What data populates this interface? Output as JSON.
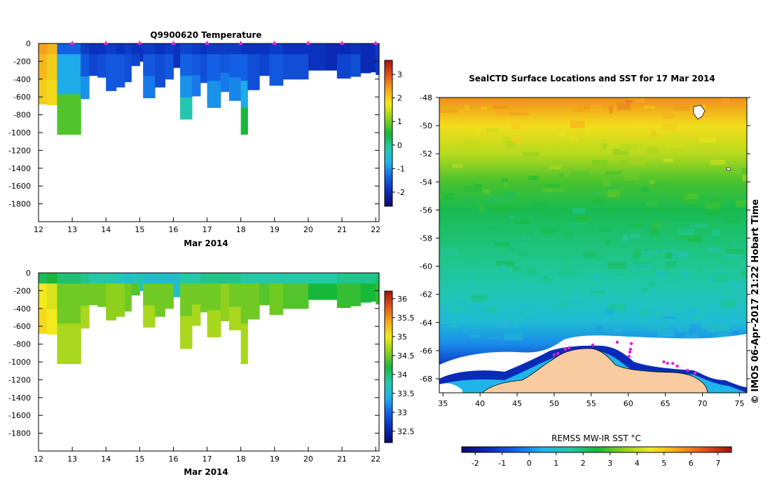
{
  "colors": {
    "ramp": [
      "#0b0b6e",
      "#0a2bb8",
      "#1464e8",
      "#1fb4ea",
      "#22c9a8",
      "#17b83a",
      "#8fd01d",
      "#f2ea1c",
      "#f5a51a",
      "#e0531a",
      "#a3140f"
    ],
    "land": "#f8cba0",
    "ice": "#ffffff",
    "marker": "#e020e0"
  },
  "chart_data": [
    {
      "type": "heatmap",
      "name": "temperature-section",
      "title": "Q9900620  Temperature",
      "xlabel": "Mar 2014",
      "x_ticks": [
        "12",
        "13",
        "14",
        "15",
        "16",
        "17",
        "18",
        "19",
        "20",
        "21",
        "22"
      ],
      "xlim": [
        12,
        22.1
      ],
      "ylabel": "",
      "y_ticks": [
        "0",
        "-200",
        "-400",
        "-600",
        "-800",
        "-1000",
        "-1200",
        "-1400",
        "-1600",
        "-1800"
      ],
      "ylim": [
        -2000,
        0
      ],
      "colorbar": {
        "ticks": [
          "3",
          "2",
          "1",
          "0",
          "-1",
          "-2"
        ],
        "range": [
          -2.6,
          3.6
        ]
      },
      "surface_markers": [
        13,
        14,
        15,
        16,
        17,
        18,
        19,
        20,
        21,
        22
      ],
      "profiles": [
        {
          "t": 12.0,
          "d": 680,
          "c": [
            2.4,
            2.2,
            2.0
          ]
        },
        {
          "t": 12.25,
          "d": 690,
          "c": [
            2.2,
            2.0,
            1.9
          ]
        },
        {
          "t": 12.55,
          "d": 1020,
          "c": [
            -1.4,
            -0.8,
            0.8
          ]
        },
        {
          "t": 13.25,
          "d": 620,
          "c": [
            -1.8,
            -1.5,
            -1.0
          ]
        },
        {
          "t": 13.5,
          "d": 360,
          "c": [
            -1.9,
            -1.7
          ]
        },
        {
          "t": 13.75,
          "d": 380,
          "c": [
            -1.9,
            -1.6
          ]
        },
        {
          "t": 14.0,
          "d": 530,
          "c": [
            -1.8,
            -1.5
          ]
        },
        {
          "t": 14.3,
          "d": 490,
          "c": [
            -1.9,
            -1.5
          ]
        },
        {
          "t": 14.55,
          "d": 430,
          "c": [
            -1.8,
            -1.6
          ]
        },
        {
          "t": 14.75,
          "d": 250,
          "c": [
            -1.9,
            -1.7
          ]
        },
        {
          "t": 15.0,
          "d": 200,
          "c": [
            -1.9
          ]
        },
        {
          "t": 15.1,
          "d": 610,
          "c": [
            -1.8,
            -1.5,
            -1.2
          ]
        },
        {
          "t": 15.45,
          "d": 490,
          "c": [
            -1.9,
            -1.6
          ]
        },
        {
          "t": 15.75,
          "d": 400,
          "c": [
            -1.8,
            -1.5
          ]
        },
        {
          "t": 16.0,
          "d": 270,
          "c": [
            -1.9
          ]
        },
        {
          "t": 16.2,
          "d": 850,
          "c": [
            -1.7,
            -1.4,
            -1.0,
            -0.2
          ]
        },
        {
          "t": 16.55,
          "d": 590,
          "c": [
            -1.8,
            -1.5,
            -1.2
          ]
        },
        {
          "t": 16.8,
          "d": 440,
          "c": [
            -1.9,
            -1.6
          ]
        },
        {
          "t": 17.0,
          "d": 720,
          "c": [
            -1.8,
            -1.4,
            -1.0
          ]
        },
        {
          "t": 17.4,
          "d": 540,
          "c": [
            -1.8,
            -1.5,
            -1.2
          ]
        },
        {
          "t": 17.65,
          "d": 640,
          "c": [
            -1.8,
            -1.4,
            -1.1
          ]
        },
        {
          "t": 18.0,
          "d": 1020,
          "c": [
            -1.9,
            -1.4,
            -0.8,
            0.5
          ]
        },
        {
          "t": 18.2,
          "d": 520,
          "c": [
            -1.9,
            -1.6
          ]
        },
        {
          "t": 18.55,
          "d": 360,
          "c": [
            -1.9,
            -1.7
          ]
        },
        {
          "t": 18.85,
          "d": 470,
          "c": [
            -1.8,
            -1.5
          ]
        },
        {
          "t": 19.25,
          "d": 400,
          "c": [
            -1.9,
            -1.6
          ]
        },
        {
          "t": 19.7,
          "d": 400,
          "c": [
            -1.9,
            -1.6
          ]
        },
        {
          "t": 20.0,
          "d": 300,
          "c": [
            -1.9
          ]
        },
        {
          "t": 20.5,
          "d": 300,
          "c": [
            -2.0
          ]
        },
        {
          "t": 20.85,
          "d": 390,
          "c": [
            -2.0,
            -1.7
          ]
        },
        {
          "t": 21.25,
          "d": 370,
          "c": [
            -1.9,
            -1.6
          ]
        },
        {
          "t": 21.55,
          "d": 330,
          "c": [
            -2.0
          ]
        },
        {
          "t": 21.85,
          "d": 320,
          "c": [
            -2.0
          ]
        },
        {
          "t": 22.0,
          "d": 350,
          "c": [
            -1.8
          ]
        }
      ]
    },
    {
      "type": "heatmap",
      "name": "salinity-section",
      "title": "",
      "xlabel": "Mar 2014",
      "x_ticks": [
        "12",
        "13",
        "14",
        "15",
        "16",
        "17",
        "18",
        "19",
        "20",
        "21",
        "22"
      ],
      "xlim": [
        12,
        22.1
      ],
      "ylabel": "",
      "y_ticks": [
        "0",
        "-200",
        "-400",
        "-600",
        "-800",
        "-1000",
        "-1200",
        "-1400",
        "-1600",
        "-1800"
      ],
      "ylim": [
        -2000,
        0
      ],
      "colorbar": {
        "ticks": [
          "36",
          "35.5",
          "35",
          "34.5",
          "34",
          "33.5",
          "33",
          "32.5"
        ],
        "range": [
          32.2,
          36.2
        ]
      },
      "profiles": [
        {
          "t": 12.0,
          "d": 680,
          "c": [
            34.1,
            35.0,
            35.1
          ]
        },
        {
          "t": 12.25,
          "d": 690,
          "c": [
            34.2,
            34.9,
            35.0
          ]
        },
        {
          "t": 12.55,
          "d": 1020,
          "c": [
            34.0,
            34.5,
            34.7
          ]
        },
        {
          "t": 13.25,
          "d": 620,
          "c": [
            33.9,
            34.5,
            34.7
          ]
        },
        {
          "t": 13.5,
          "d": 360,
          "c": [
            33.8,
            34.5
          ]
        },
        {
          "t": 13.75,
          "d": 380,
          "c": [
            33.8,
            34.5
          ]
        },
        {
          "t": 14.0,
          "d": 530,
          "c": [
            33.8,
            34.6
          ]
        },
        {
          "t": 14.3,
          "d": 490,
          "c": [
            33.7,
            34.6
          ]
        },
        {
          "t": 14.55,
          "d": 430,
          "c": [
            33.6,
            34.5
          ]
        },
        {
          "t": 14.75,
          "d": 250,
          "c": [
            33.7,
            34.4
          ]
        },
        {
          "t": 15.0,
          "d": 200,
          "c": [
            33.7
          ]
        },
        {
          "t": 15.1,
          "d": 610,
          "c": [
            33.6,
            34.5,
            34.7
          ]
        },
        {
          "t": 15.45,
          "d": 490,
          "c": [
            33.6,
            34.5
          ]
        },
        {
          "t": 15.75,
          "d": 400,
          "c": [
            33.6,
            34.5
          ]
        },
        {
          "t": 16.0,
          "d": 270,
          "c": [
            33.6
          ]
        },
        {
          "t": 16.2,
          "d": 850,
          "c": [
            33.8,
            34.5,
            34.7
          ]
        },
        {
          "t": 16.55,
          "d": 590,
          "c": [
            33.8,
            34.5,
            34.7
          ]
        },
        {
          "t": 16.8,
          "d": 440,
          "c": [
            33.9,
            34.5
          ]
        },
        {
          "t": 17.0,
          "d": 720,
          "c": [
            33.9,
            34.5,
            34.7
          ]
        },
        {
          "t": 17.4,
          "d": 540,
          "c": [
            33.9,
            34.6
          ]
        },
        {
          "t": 17.65,
          "d": 640,
          "c": [
            33.9,
            34.5,
            34.7
          ]
        },
        {
          "t": 18.0,
          "d": 1020,
          "c": [
            33.8,
            34.5,
            34.7
          ]
        },
        {
          "t": 18.2,
          "d": 520,
          "c": [
            33.8,
            34.5
          ]
        },
        {
          "t": 18.55,
          "d": 360,
          "c": [
            33.8,
            34.4
          ]
        },
        {
          "t": 18.85,
          "d": 470,
          "c": [
            33.8,
            34.5
          ]
        },
        {
          "t": 19.25,
          "d": 400,
          "c": [
            33.8,
            34.4
          ]
        },
        {
          "t": 19.7,
          "d": 400,
          "c": [
            33.8,
            34.4
          ]
        },
        {
          "t": 20.0,
          "d": 300,
          "c": [
            33.8,
            34.2
          ]
        },
        {
          "t": 20.5,
          "d": 300,
          "c": [
            33.8,
            34.2
          ]
        },
        {
          "t": 20.85,
          "d": 390,
          "c": [
            33.9,
            34.3
          ]
        },
        {
          "t": 21.25,
          "d": 370,
          "c": [
            33.9,
            34.3
          ]
        },
        {
          "t": 21.55,
          "d": 330,
          "c": [
            33.9,
            34.2
          ]
        },
        {
          "t": 21.85,
          "d": 320,
          "c": [
            33.9,
            34.2
          ]
        },
        {
          "t": 22.0,
          "d": 350,
          "c": [
            34.0,
            34.3
          ]
        }
      ]
    },
    {
      "type": "heatmap",
      "name": "sst-map",
      "title": "SealCTD Surface Locations and SST for 17 Mar 2014",
      "x_ticks": [
        "35",
        "40",
        "45",
        "50",
        "55",
        "60",
        "65",
        "70",
        "75"
      ],
      "xlim": [
        34.5,
        76
      ],
      "y_ticks": [
        "-48",
        "-50",
        "-52",
        "-54",
        "-56",
        "-58",
        "-60",
        "-62",
        "-64",
        "-66",
        "-68"
      ],
      "ylim": [
        -69,
        -48
      ],
      "credit": "© IMOS 06-Apr-2017 21:22 Hobart Time",
      "colorbar": {
        "label": "REMSS MW-IR SST °C",
        "ticks": [
          "-2",
          "-1",
          "0",
          "1",
          "2",
          "3",
          "4",
          "5",
          "6",
          "7"
        ],
        "range": [
          -2.5,
          7.5
        ]
      },
      "sst_by_latitude": [
        {
          "lat": -48,
          "sst": 5.8
        },
        {
          "lat": -50,
          "sst": 4.7
        },
        {
          "lat": -52,
          "sst": 3.9
        },
        {
          "lat": -54,
          "sst": 2.9
        },
        {
          "lat": -56,
          "sst": 2.3
        },
        {
          "lat": -58,
          "sst": 2.0
        },
        {
          "lat": -60,
          "sst": 1.7
        },
        {
          "lat": -62,
          "sst": 1.3
        },
        {
          "lat": -64,
          "sst": 0.8
        },
        {
          "lat": -65.5,
          "sst": 0.0
        },
        {
          "lat": -67,
          "sst": -1.2
        },
        {
          "lat": -68.5,
          "sst": -1.8
        }
      ],
      "seal_locations": [
        {
          "lon": 50.0,
          "lat": -66.3
        },
        {
          "lon": 50.5,
          "lat": -66.2
        },
        {
          "lon": 51.5,
          "lat": -65.9
        },
        {
          "lon": 52.0,
          "lat": -65.8
        },
        {
          "lon": 55.2,
          "lat": -65.6
        },
        {
          "lon": 58.5,
          "lat": -65.4
        },
        {
          "lon": 60.1,
          "lat": -66.4
        },
        {
          "lon": 60.2,
          "lat": -66.1
        },
        {
          "lon": 60.3,
          "lat": -65.9
        },
        {
          "lon": 60.4,
          "lat": -65.5
        },
        {
          "lon": 64.8,
          "lat": -66.8
        },
        {
          "lon": 65.3,
          "lat": -66.9
        },
        {
          "lon": 66.0,
          "lat": -66.9
        },
        {
          "lon": 66.6,
          "lat": -67.1
        },
        {
          "lon": 68.0,
          "lat": -67.4
        },
        {
          "lon": 69.0,
          "lat": -67.6
        }
      ]
    }
  ]
}
